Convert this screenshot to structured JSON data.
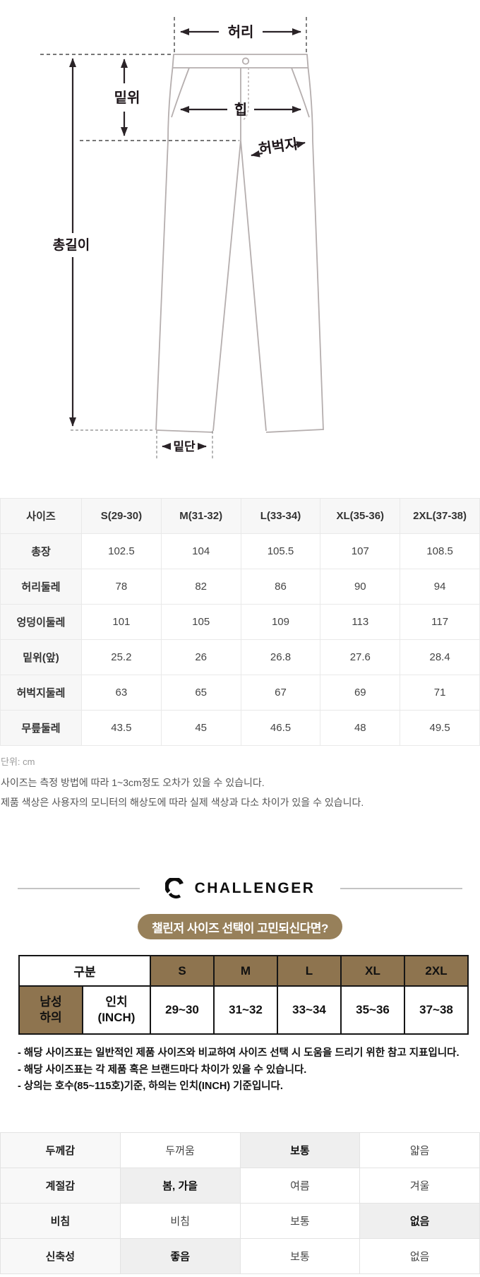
{
  "diagram": {
    "labels": {
      "waist": "허리",
      "rise": "밑위",
      "hip": "힙",
      "thigh": "허벅지",
      "total_length": "총길이",
      "hem": "밑단"
    }
  },
  "size_table": {
    "columns": [
      "사이즈",
      "S(29-30)",
      "M(31-32)",
      "L(33-34)",
      "XL(35-36)",
      "2XL(37-38)"
    ],
    "rows": [
      {
        "label": "총장",
        "values": [
          "102.5",
          "104",
          "105.5",
          "107",
          "108.5"
        ]
      },
      {
        "label": "허리둘레",
        "values": [
          "78",
          "82",
          "86",
          "90",
          "94"
        ]
      },
      {
        "label": "엉덩이둘레",
        "values": [
          "101",
          "105",
          "109",
          "113",
          "117"
        ]
      },
      {
        "label": "밑위(앞)",
        "values": [
          "25.2",
          "26",
          "26.8",
          "27.6",
          "28.4"
        ]
      },
      {
        "label": "허벅지둘레",
        "values": [
          "63",
          "65",
          "67",
          "69",
          "71"
        ]
      },
      {
        "label": "무릎둘레",
        "values": [
          "43.5",
          "45",
          "46.5",
          "48",
          "49.5"
        ]
      }
    ],
    "unit_note": "단위: cm"
  },
  "notices": [
    "사이즈는 측정 방법에 따라 1~3cm정도 오차가 있을 수 있습니다.",
    "제품 색상은 사용자의 모니터의 해상도에 따라 실제 색상과 다소 차이가 있을 수 있습니다."
  ],
  "brand": {
    "name": "CHALLENGER",
    "banner": "챌린저 사이즈 선택이 고민되신다면?",
    "banner_color": "#97805a",
    "table_header_color": "#8e744f"
  },
  "inch_table": {
    "header_label": "구분",
    "size_columns": [
      "S",
      "M",
      "L",
      "XL",
      "2XL"
    ],
    "row": {
      "category": "남성\n하의",
      "unit": "인치\n(INCH)",
      "values": [
        "29~30",
        "31~32",
        "33~34",
        "35~36",
        "37~38"
      ]
    }
  },
  "inch_notes": [
    "- 해당 사이즈표는 일반적인 제품 사이즈와 비교하여 사이즈 선택 시 도움을 드리기 위한 참고 지표입니다.",
    "- 해당 사이즈표는 각 제품 혹은 브랜드마다 차이가 있을 수 있습니다.",
    "- 상의는 호수(85~115호)기준, 하의는 인치(INCH) 기준입니다."
  ],
  "attributes_table": {
    "rows": [
      {
        "label": "두께감",
        "options": [
          "두꺼움",
          "보통",
          "얇음"
        ],
        "selected": 1
      },
      {
        "label": "계절감",
        "options": [
          "봄, 가을",
          "여름",
          "겨울"
        ],
        "selected": 0
      },
      {
        "label": "비침",
        "options": [
          "비침",
          "보통",
          "없음"
        ],
        "selected": 2
      },
      {
        "label": "신축성",
        "options": [
          "좋음",
          "보통",
          "없음"
        ],
        "selected": 0
      }
    ]
  }
}
